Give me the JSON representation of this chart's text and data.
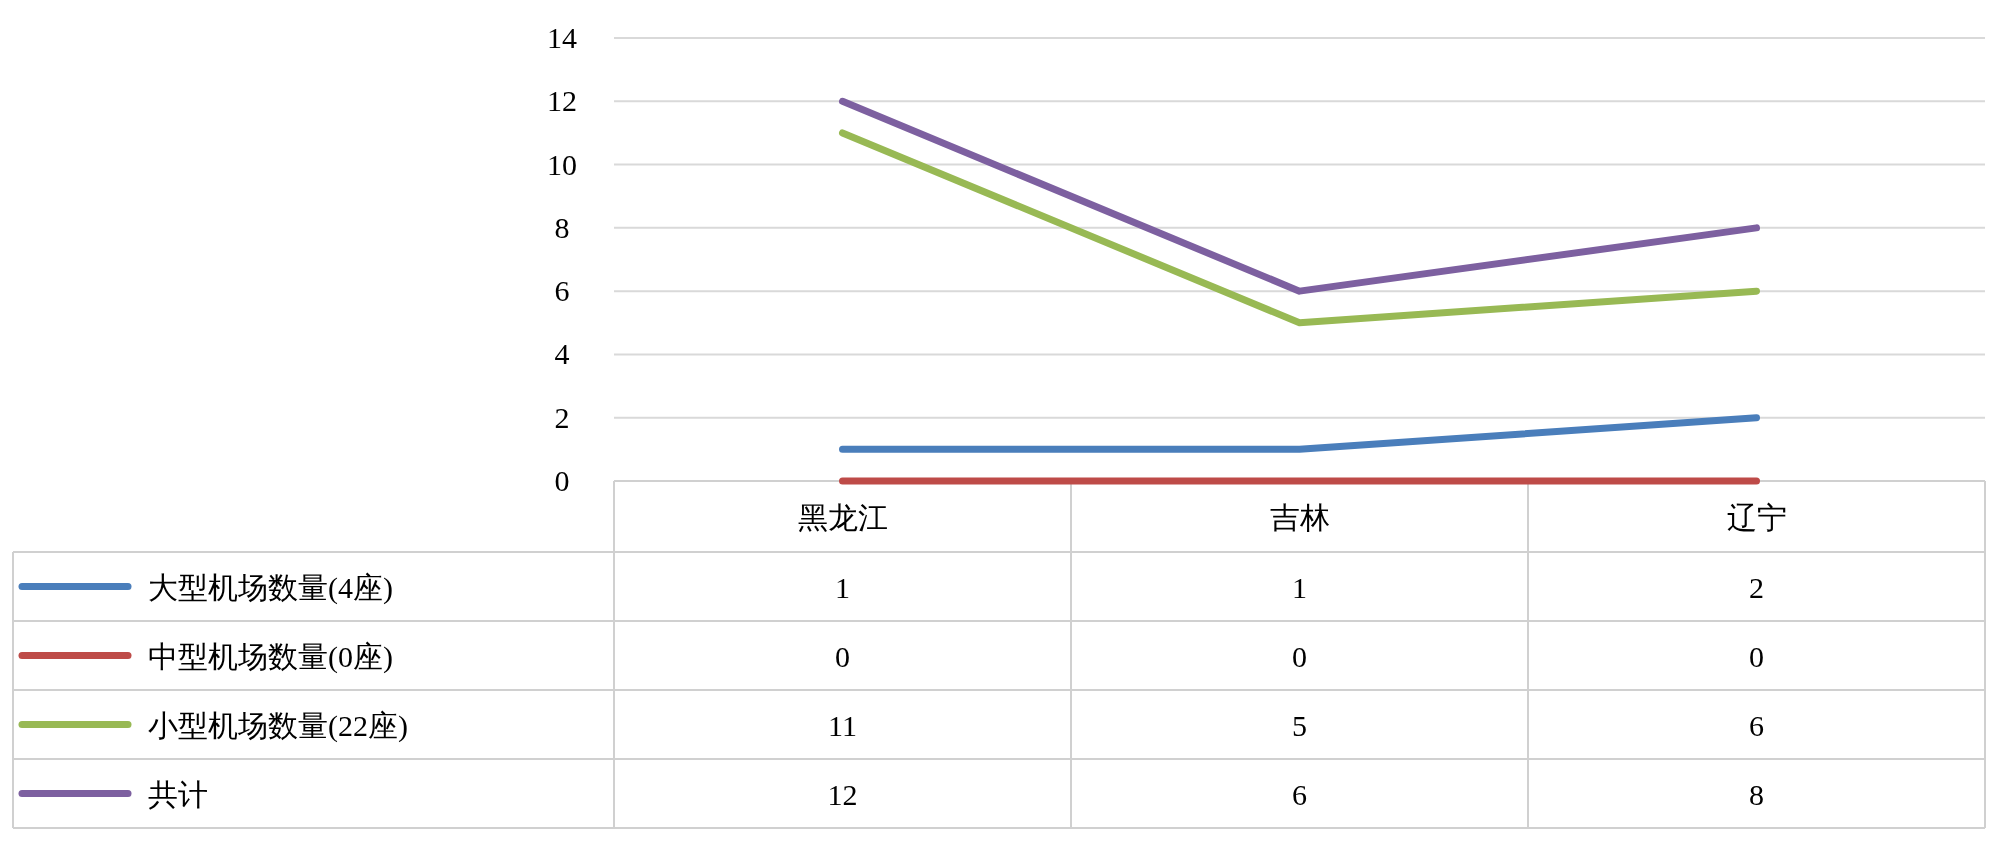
{
  "chart_data": {
    "type": "line",
    "categories": [
      "黑龙江",
      "吉林",
      "辽宁"
    ],
    "series": [
      {
        "name": "大型机场数量(4座)",
        "color": "#4a7ebb",
        "values": [
          1,
          1,
          2
        ]
      },
      {
        "name": "中型机场数量(0座)",
        "color": "#be4b48",
        "values": [
          0,
          0,
          0
        ]
      },
      {
        "name": "小型机场数量(22座)",
        "color": "#98b954",
        "values": [
          11,
          5,
          6
        ]
      },
      {
        "name": "共计",
        "color": "#7d60a0",
        "values": [
          12,
          6,
          8
        ]
      }
    ],
    "ylim": [
      0,
      14
    ],
    "yticks": [
      0,
      2,
      4,
      6,
      8,
      10,
      12,
      14
    ],
    "grid": "y",
    "data_labels": true,
    "legend": "bottom left",
    "marker": "none",
    "line_style": "solid"
  }
}
